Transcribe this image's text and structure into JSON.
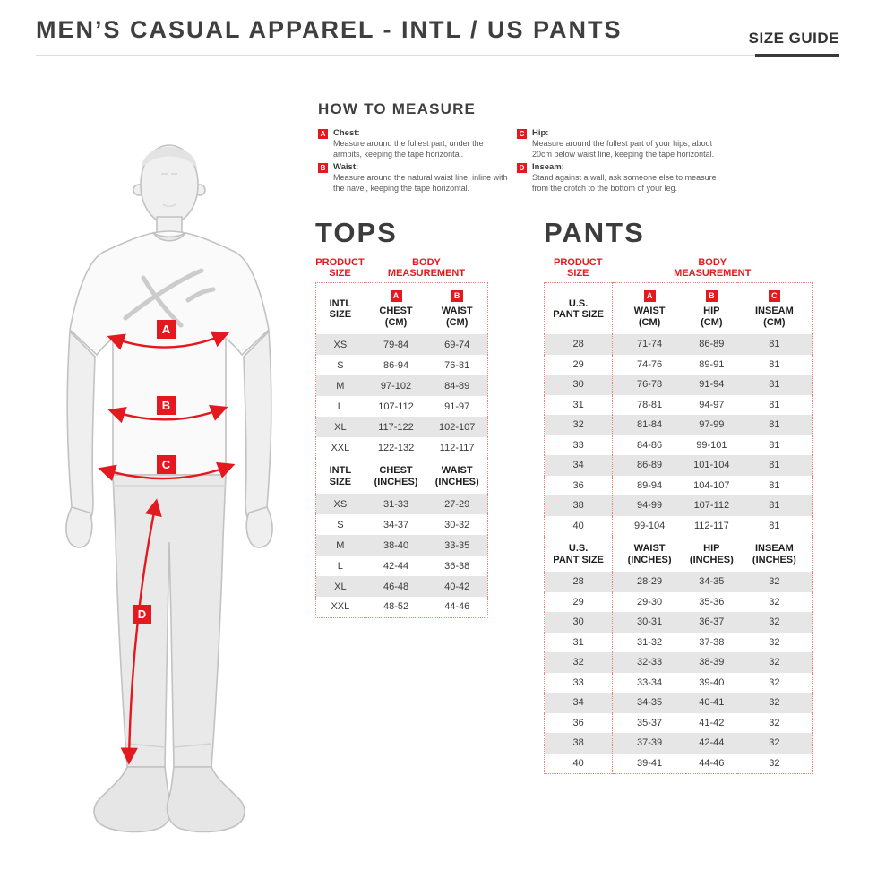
{
  "page": {
    "title": "MEN’S CASUAL APPAREL - INTL / US PANTS",
    "size_guide_label": "SIZE GUIDE"
  },
  "colors": {
    "accent_red": "#e4191f",
    "stripe": "#e6e6e6",
    "dark_text": "#3c3c3c"
  },
  "figure": {
    "labels": [
      "A",
      "B",
      "C",
      "D"
    ]
  },
  "how_to_measure": {
    "title": "HOW TO MEASURE",
    "col1": [
      {
        "badge": "A",
        "label": "Chest:",
        "text": "Measure around the fullest part, under the armpits, keeping the tape horizontal."
      },
      {
        "badge": "B",
        "label": "Waist:",
        "text": "Measure around the natural waist line, inline with the navel, keeping the tape horizontal."
      }
    ],
    "col2": [
      {
        "badge": "C",
        "label": "Hip:",
        "text": "Measure around the fullest part of your hips, about 20cm below waist line, keeping the tape horizontal."
      },
      {
        "badge": "D",
        "label": "Inseam:",
        "text": "Stand against a wall, ask someone else to measure from the crotch to the bottom of your leg."
      }
    ]
  },
  "tops": {
    "title": "TOPS",
    "product_size_label": "PRODUCT\nSIZE",
    "body_measurement_label": "BODY\nMEASUREMENT",
    "cm": {
      "badges": [
        "",
        "A",
        "B"
      ],
      "headers": [
        "INTL\nSIZE",
        "CHEST\n(CM)",
        "WAIST\n(CM)"
      ],
      "rows": [
        [
          "XS",
          "79-84",
          "69-74"
        ],
        [
          "S",
          "86-94",
          "76-81"
        ],
        [
          "M",
          "97-102",
          "84-89"
        ],
        [
          "L",
          "107-112",
          "91-97"
        ],
        [
          "XL",
          "117-122",
          "102-107"
        ],
        [
          "XXL",
          "122-132",
          "112-117"
        ]
      ]
    },
    "inches": {
      "badges": [
        "",
        "",
        ""
      ],
      "headers": [
        "INTL\nSIZE",
        "CHEST\n(INCHES)",
        "WAIST\n(INCHES)"
      ],
      "rows": [
        [
          "XS",
          "31-33",
          "27-29"
        ],
        [
          "S",
          "34-37",
          "30-32"
        ],
        [
          "M",
          "38-40",
          "33-35"
        ],
        [
          "L",
          "42-44",
          "36-38"
        ],
        [
          "XL",
          "46-48",
          "40-42"
        ],
        [
          "XXL",
          "48-52",
          "44-46"
        ]
      ]
    }
  },
  "pants": {
    "title": "PANTS",
    "product_size_label": "PRODUCT\nSIZE",
    "body_measurement_label": "BODY\nMEASUREMENT",
    "cm": {
      "badges": [
        "",
        "A",
        "B",
        "C"
      ],
      "headers": [
        "U.S.\nPANT SIZE",
        "WAIST\n(CM)",
        "HIP\n(CM)",
        "INSEAM\n(CM)"
      ],
      "rows": [
        [
          "28",
          "71-74",
          "86-89",
          "81"
        ],
        [
          "29",
          "74-76",
          "89-91",
          "81"
        ],
        [
          "30",
          "76-78",
          "91-94",
          "81"
        ],
        [
          "31",
          "78-81",
          "94-97",
          "81"
        ],
        [
          "32",
          "81-84",
          "97-99",
          "81"
        ],
        [
          "33",
          "84-86",
          "99-101",
          "81"
        ],
        [
          "34",
          "86-89",
          "101-104",
          "81"
        ],
        [
          "36",
          "89-94",
          "104-107",
          "81"
        ],
        [
          "38",
          "94-99",
          "107-112",
          "81"
        ],
        [
          "40",
          "99-104",
          "112-117",
          "81"
        ]
      ]
    },
    "inches": {
      "badges": [
        "",
        "",
        "",
        ""
      ],
      "headers": [
        "U.S.\nPANT SIZE",
        "WAIST\n(INCHES)",
        "HIP\n(INCHES)",
        "INSEAM\n(INCHES)"
      ],
      "rows": [
        [
          "28",
          "28-29",
          "34-35",
          "32"
        ],
        [
          "29",
          "29-30",
          "35-36",
          "32"
        ],
        [
          "30",
          "30-31",
          "36-37",
          "32"
        ],
        [
          "31",
          "31-32",
          "37-38",
          "32"
        ],
        [
          "32",
          "32-33",
          "38-39",
          "32"
        ],
        [
          "33",
          "33-34",
          "39-40",
          "32"
        ],
        [
          "34",
          "34-35",
          "40-41",
          "32"
        ],
        [
          "36",
          "35-37",
          "41-42",
          "32"
        ],
        [
          "38",
          "37-39",
          "42-44",
          "32"
        ],
        [
          "40",
          "39-41",
          "44-46",
          "32"
        ]
      ]
    }
  }
}
